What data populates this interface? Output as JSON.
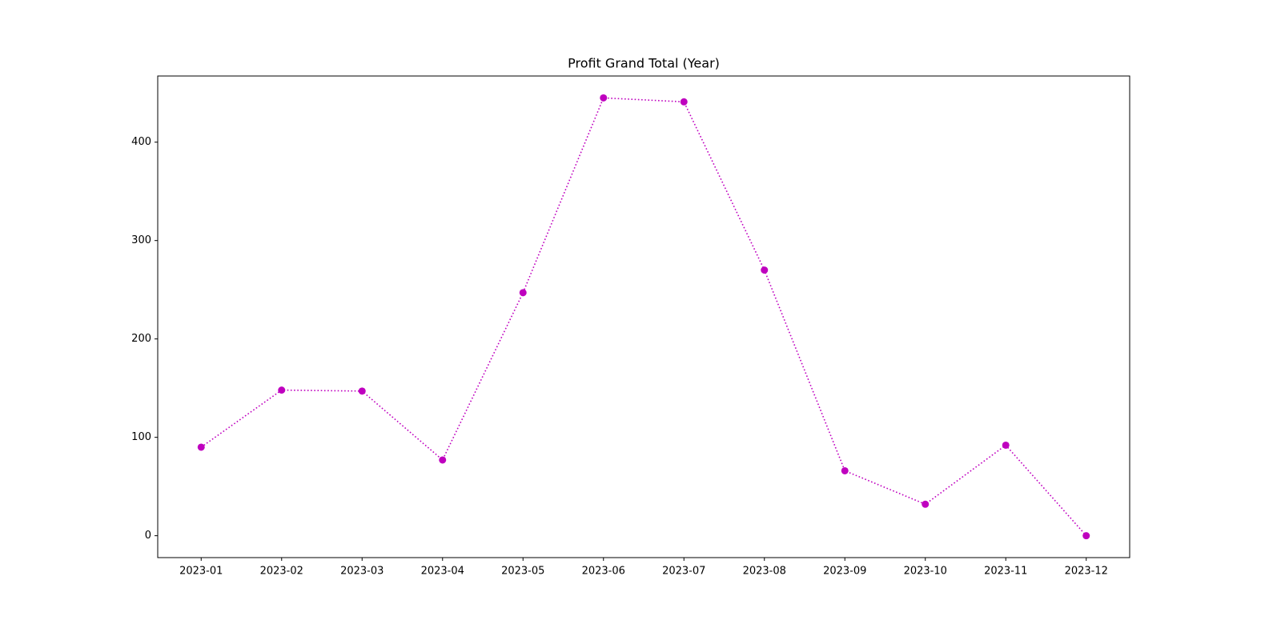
{
  "chart_data": {
    "type": "line",
    "title": "Profit Grand Total (Year)",
    "categories": [
      "2023-01",
      "2023-02",
      "2023-03",
      "2023-04",
      "2023-05",
      "2023-06",
      "2023-07",
      "2023-08",
      "2023-09",
      "2023-10",
      "2023-11",
      "2023-12"
    ],
    "values": [
      90,
      148,
      147,
      77,
      247,
      445,
      441,
      270,
      66,
      32,
      92,
      0
    ],
    "color": "#bf00bf",
    "line_style": "dotted",
    "marker": "circle",
    "ylim": [
      -22.25,
      467.25
    ],
    "yticks": [
      0,
      100,
      200,
      300,
      400
    ],
    "grid": false
  }
}
